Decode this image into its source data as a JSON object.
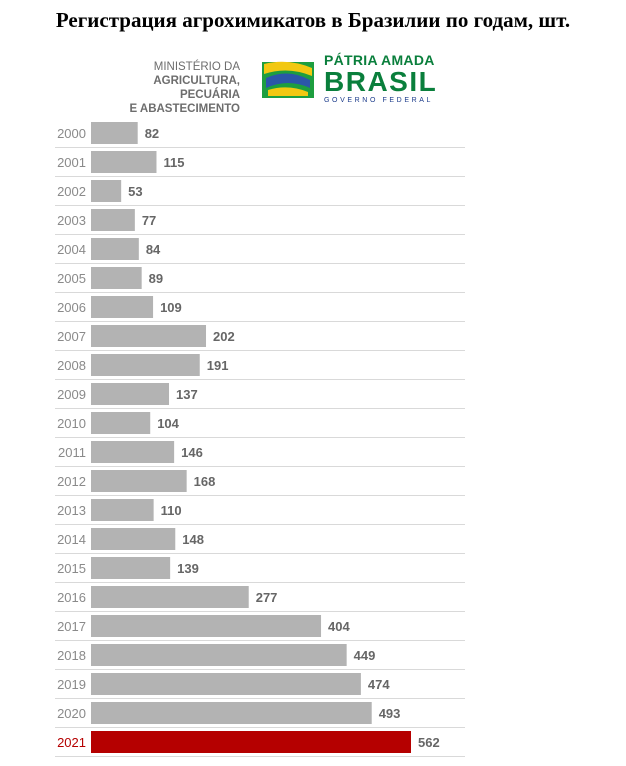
{
  "header": {
    "title": "Регистрация агрохимикатов в Бразилии по годам, шт."
  },
  "logos": {
    "ministry": {
      "line1": "MINISTÉRIO DA",
      "line2": "AGRICULTURA, PECUÁRIA",
      "line3": "E ABASTECIMENTO"
    },
    "government": {
      "line1": "PÁTRIA AMADA",
      "line2": "BRASIL",
      "line3": "GOVERNO FEDERAL"
    }
  },
  "colors": {
    "bar": "#b3b3b3",
    "highlight": "#b50000",
    "value_label": "#666666",
    "year_label": "#8a8a8a",
    "separator": "#d9d9d9"
  },
  "chart_data": {
    "type": "bar",
    "orientation": "horizontal",
    "categories": [
      "2000",
      "2001",
      "2002",
      "2003",
      "2004",
      "2005",
      "2006",
      "2007",
      "2008",
      "2009",
      "2010",
      "2011",
      "2012",
      "2013",
      "2014",
      "2015",
      "2016",
      "2017",
      "2018",
      "2019",
      "2020",
      "2021"
    ],
    "values": [
      82,
      115,
      53,
      77,
      84,
      89,
      109,
      202,
      191,
      137,
      104,
      146,
      168,
      110,
      148,
      139,
      277,
      404,
      449,
      474,
      493,
      562
    ],
    "highlight_category": "2021",
    "title": "",
    "xlabel": "",
    "ylabel": "",
    "grid": false,
    "legend": "none"
  }
}
